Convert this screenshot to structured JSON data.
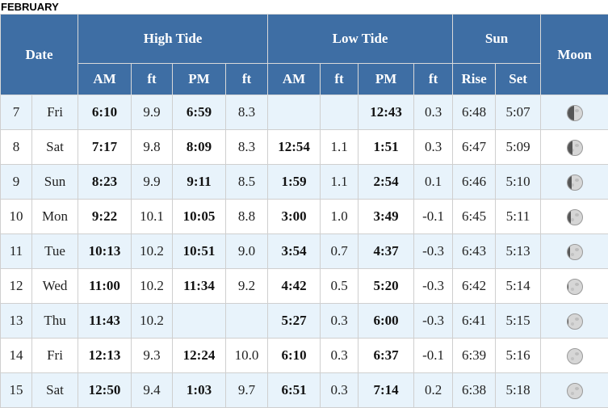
{
  "month": "FEBRUARY",
  "headers": {
    "date": "Date",
    "high_tide": "High Tide",
    "low_tide": "Low Tide",
    "sun": "Sun",
    "moon": "Moon",
    "am": "AM",
    "ft": "ft",
    "pm": "PM",
    "rise": "Rise",
    "set": "Set"
  },
  "rows": [
    {
      "day": "7",
      "dow": "Fri",
      "h_am": "6:10",
      "h_am_ft": "9.9",
      "h_pm": "6:59",
      "h_pm_ft": "8.3",
      "l_am": "",
      "l_am_ft": "",
      "l_pm": "12:43",
      "l_pm_ft": "0.3",
      "rise": "6:48",
      "set": "5:07",
      "moon_phase": 0.45
    },
    {
      "day": "8",
      "dow": "Sat",
      "h_am": "7:17",
      "h_am_ft": "9.8",
      "h_pm": "8:09",
      "h_pm_ft": "8.3",
      "l_am": "12:54",
      "l_am_ft": "1.1",
      "l_pm": "1:51",
      "l_pm_ft": "0.3",
      "rise": "6:47",
      "set": "5:09",
      "moon_phase": 0.35
    },
    {
      "day": "9",
      "dow": "Sun",
      "h_am": "8:23",
      "h_am_ft": "9.9",
      "h_pm": "9:11",
      "h_pm_ft": "8.5",
      "l_am": "1:59",
      "l_am_ft": "1.1",
      "l_pm": "2:54",
      "l_pm_ft": "0.1",
      "rise": "6:46",
      "set": "5:10",
      "moon_phase": 0.28
    },
    {
      "day": "10",
      "dow": "Mon",
      "h_am": "9:22",
      "h_am_ft": "10.1",
      "h_pm": "10:05",
      "h_pm_ft": "8.8",
      "l_am": "3:00",
      "l_am_ft": "1.0",
      "l_pm": "3:49",
      "l_pm_ft": "-0.1",
      "rise": "6:45",
      "set": "5:11",
      "moon_phase": 0.2
    },
    {
      "day": "11",
      "dow": "Tue",
      "h_am": "10:13",
      "h_am_ft": "10.2",
      "h_pm": "10:51",
      "h_pm_ft": "9.0",
      "l_am": "3:54",
      "l_am_ft": "0.7",
      "l_pm": "4:37",
      "l_pm_ft": "-0.3",
      "rise": "6:43",
      "set": "5:13",
      "moon_phase": 0.14
    },
    {
      "day": "12",
      "dow": "Wed",
      "h_am": "11:00",
      "h_am_ft": "10.2",
      "h_pm": "11:34",
      "h_pm_ft": "9.2",
      "l_am": "4:42",
      "l_am_ft": "0.5",
      "l_pm": "5:20",
      "l_pm_ft": "-0.3",
      "rise": "6:42",
      "set": "5:14",
      "moon_phase": 0.08
    },
    {
      "day": "13",
      "dow": "Thu",
      "h_am": "11:43",
      "h_am_ft": "10.2",
      "h_pm": "",
      "h_pm_ft": "",
      "l_am": "5:27",
      "l_am_ft": "0.3",
      "l_pm": "6:00",
      "l_pm_ft": "-0.3",
      "rise": "6:41",
      "set": "5:15",
      "moon_phase": 0.04
    },
    {
      "day": "14",
      "dow": "Fri",
      "h_am": "12:13",
      "h_am_ft": "9.3",
      "h_pm": "12:24",
      "h_pm_ft": "10.0",
      "l_am": "6:10",
      "l_am_ft": "0.3",
      "l_pm": "6:37",
      "l_pm_ft": "-0.1",
      "rise": "6:39",
      "set": "5:16",
      "moon_phase": 0.02
    },
    {
      "day": "15",
      "dow": "Sat",
      "h_am": "12:50",
      "h_am_ft": "9.4",
      "h_pm": "1:03",
      "h_pm_ft": "9.7",
      "l_am": "6:51",
      "l_am_ft": "0.3",
      "l_pm": "7:14",
      "l_pm_ft": "0.2",
      "rise": "6:38",
      "set": "5:18",
      "moon_phase": 0.01
    }
  ]
}
